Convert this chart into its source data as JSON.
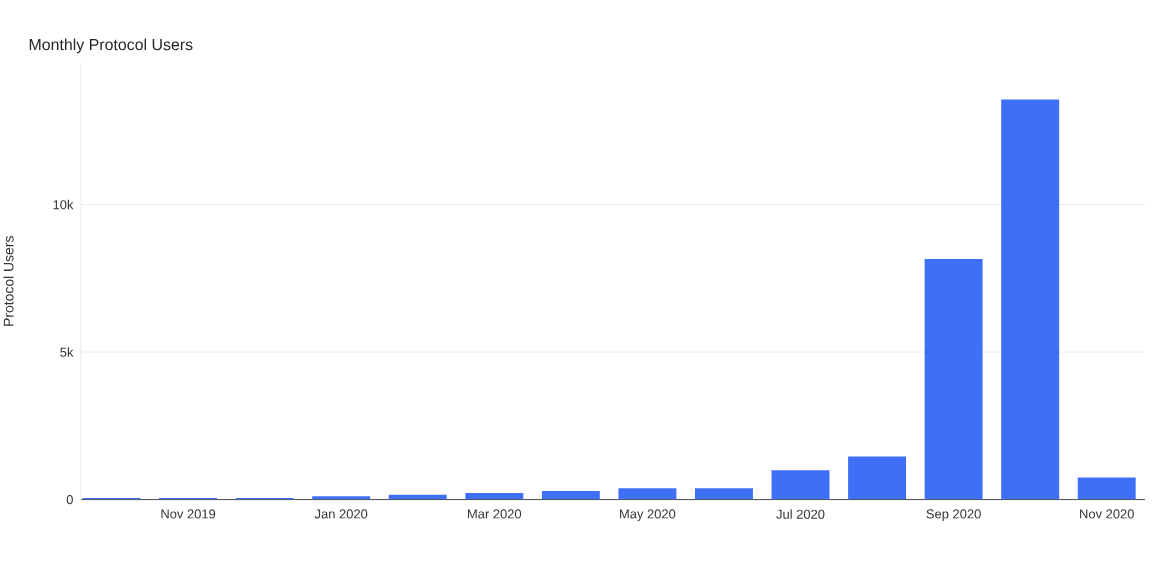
{
  "chart_data": {
    "type": "bar",
    "title": "Monthly Protocol Users",
    "ylabel": "Protocol Users",
    "categories": [
      null,
      "Nov 2019",
      null,
      "Jan 2020",
      null,
      "Mar 2020",
      null,
      "May 2020",
      null,
      "Jul 2020",
      null,
      "Sep 2020",
      null,
      "Nov 2020"
    ],
    "values": [
      50,
      50,
      50,
      110,
      160,
      220,
      290,
      380,
      380,
      990,
      1460,
      8150,
      13560,
      750
    ],
    "color": "#3f6ff6",
    "ylim": [
      0,
      14800
    ],
    "yticks": [
      {
        "value": 0,
        "label": "0"
      },
      {
        "value": 5000,
        "label": "5k"
      },
      {
        "value": 10000,
        "label": "10k"
      }
    ],
    "grid": "y"
  }
}
